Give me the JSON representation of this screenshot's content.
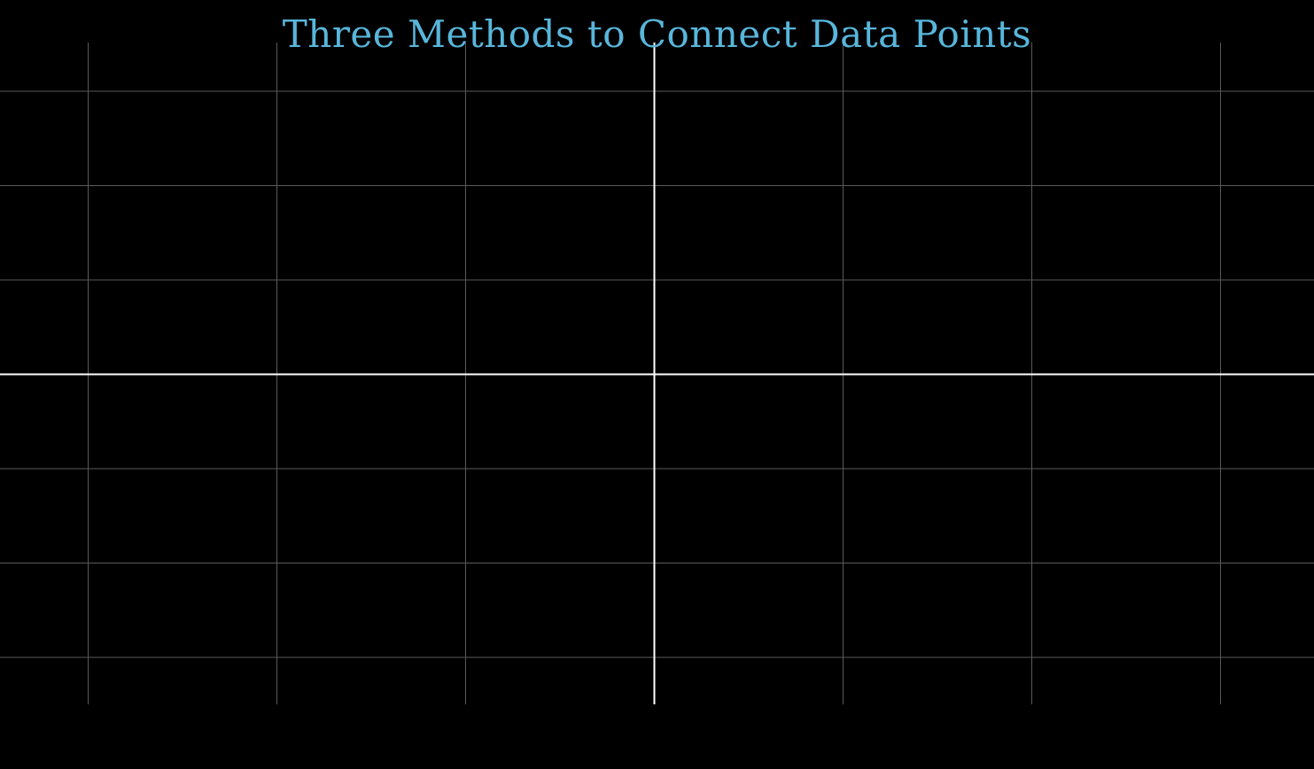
{
  "title": "Three Methods to Connect Data Points",
  "colors": {
    "background": "#000000",
    "title": "#58b6db",
    "grid": "#5a5a5a",
    "axis": "#ffffff"
  }
}
